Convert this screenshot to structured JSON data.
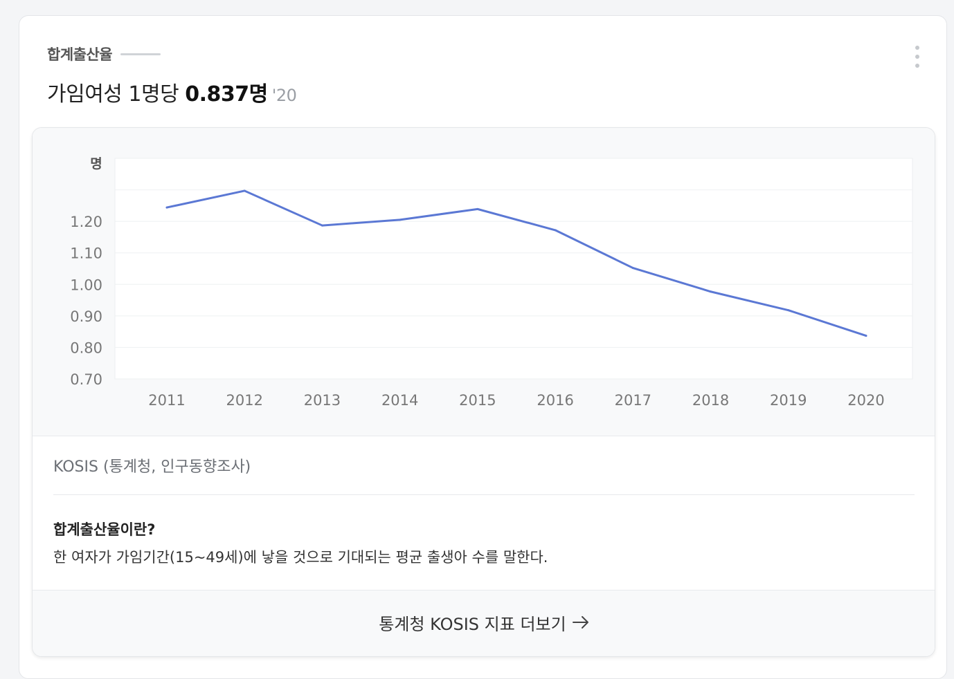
{
  "header": {
    "subtitle": "합계출산율",
    "headline_prefix": "가임여성 1명당 ",
    "headline_value": "0.837명",
    "headline_year": "'20",
    "more_icon": "vertical-dots-icon"
  },
  "chart_data": {
    "type": "line",
    "ylabel": "명",
    "ylim": [
      0.7,
      1.4
    ],
    "yticks": [
      "1.20",
      "1.10",
      "1.00",
      "0.90",
      "0.80",
      "0.70"
    ],
    "categories": [
      "2011",
      "2012",
      "2013",
      "2014",
      "2015",
      "2016",
      "2017",
      "2018",
      "2019",
      "2020"
    ],
    "series": [
      {
        "values": [
          1.244,
          1.297,
          1.187,
          1.205,
          1.239,
          1.172,
          1.052,
          0.977,
          0.918,
          0.837
        ]
      }
    ],
    "grid": true,
    "line_color": "#5b78d4"
  },
  "source": "KOSIS (통계청, 인구동향조사)",
  "definition": {
    "title": "합계출산율이란?",
    "body": "한 여자가 가임기간(15~49세)에 낳을 것으로 기대되는 평균 출생아 수를 말한다."
  },
  "footer": {
    "link_label": "통계청 KOSIS 지표 더보기",
    "arrow_icon": "arrow-right-icon"
  }
}
